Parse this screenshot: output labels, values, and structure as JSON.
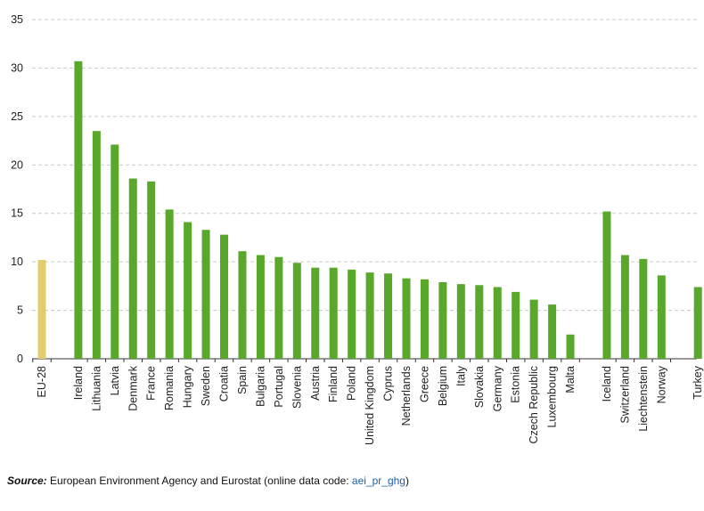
{
  "chart_data": {
    "type": "bar",
    "title": "",
    "xlabel": "",
    "ylabel": "",
    "ylim": [
      0,
      35
    ],
    "yticks": [
      0,
      5,
      10,
      15,
      20,
      25,
      30,
      35
    ],
    "grid": "horizontal-dashed",
    "categories": [
      "EU-28",
      "Ireland",
      "Lithuania",
      "Latvia",
      "Denmark",
      "France",
      "Romania",
      "Hungary",
      "Sweden",
      "Croatia",
      "Spain",
      "Bulgaria",
      "Portugal",
      "Slovenia",
      "Austria",
      "Finland",
      "Poland",
      "United Kingdom",
      "Cyprus",
      "Netherlands",
      "Greece",
      "Belgium",
      "Italy",
      "Slovakia",
      "Germany",
      "Estonia",
      "Czech Republic",
      "Luxembourg",
      "Malta",
      "Iceland",
      "Switzerland",
      "Liechtenstein",
      "Norway",
      "Turkey"
    ],
    "values": [
      10.2,
      30.7,
      23.5,
      22.1,
      18.6,
      18.3,
      15.4,
      14.1,
      13.3,
      12.8,
      11.1,
      10.7,
      10.5,
      9.9,
      9.4,
      9.4,
      9.2,
      8.9,
      8.8,
      8.3,
      8.2,
      7.9,
      7.7,
      7.6,
      7.4,
      6.9,
      6.1,
      5.6,
      2.5,
      15.2,
      10.7,
      10.3,
      8.6,
      7.4
    ],
    "colors": {
      "eu": "#e3cc6e",
      "country": "#59a72b",
      "grid": "#c9c9c9",
      "axis": "#333333"
    }
  },
  "source": {
    "label": "Source:",
    "text": " European Environment Agency and Eurostat (online data code: ",
    "code": "aei_pr_ghg",
    "close": ")"
  }
}
